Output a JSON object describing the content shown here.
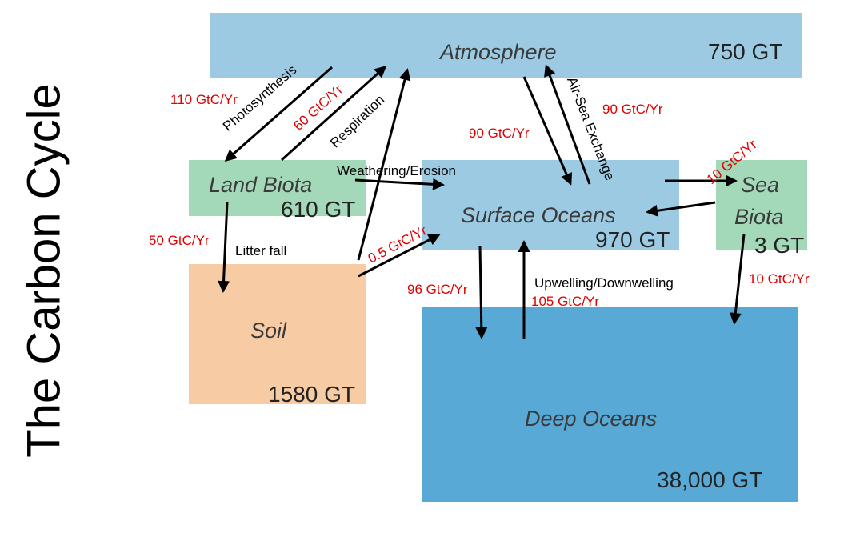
{
  "title": "The Carbon Cycle",
  "reservoirs": {
    "atmosphere": {
      "name": "Atmosphere",
      "amount": "750 GT",
      "color": "#9ccae3"
    },
    "land_biota": {
      "name": "Land Biota",
      "amount": "610 GT",
      "color": "#a3d9b8"
    },
    "surface_oceans": {
      "name": "Surface Oceans",
      "amount": "970 GT",
      "color": "#9ccae3"
    },
    "sea_biota": {
      "name": "Sea",
      "name2": "Biota",
      "amount": "3 GT",
      "color": "#a3d9b8"
    },
    "soil": {
      "name": "Soil",
      "amount": "1580 GT",
      "color": "#f7cba4"
    },
    "deep_oceans": {
      "name": "Deep Oceans",
      "amount": "38,000 GT",
      "color": "#58a9d6"
    }
  },
  "processes": {
    "photosynthesis": "Photosynthesis",
    "respiration": "Respiration",
    "air_sea": "Air-Sea Exchange",
    "weathering": "Weathering/Erosion",
    "litter": "Litter fall",
    "upwelling": "Upwelling/Downwelling"
  },
  "fluxes": {
    "photosynthesis": "110 GtC/Yr",
    "respiration": "60 GtC/Yr",
    "ocean_uptake": "90 GtC/Yr",
    "ocean_release": "90 GtC/Yr",
    "sea_biota": "10 GtC/Yr",
    "litter": "50 GtC/Yr",
    "soil_ocean": "0.5 GtC/Yr",
    "downwelling": "96 GtC/Yr",
    "upwelling": "105 GtC/Yr",
    "sea_biota_deep": "10 GtC/Yr"
  }
}
